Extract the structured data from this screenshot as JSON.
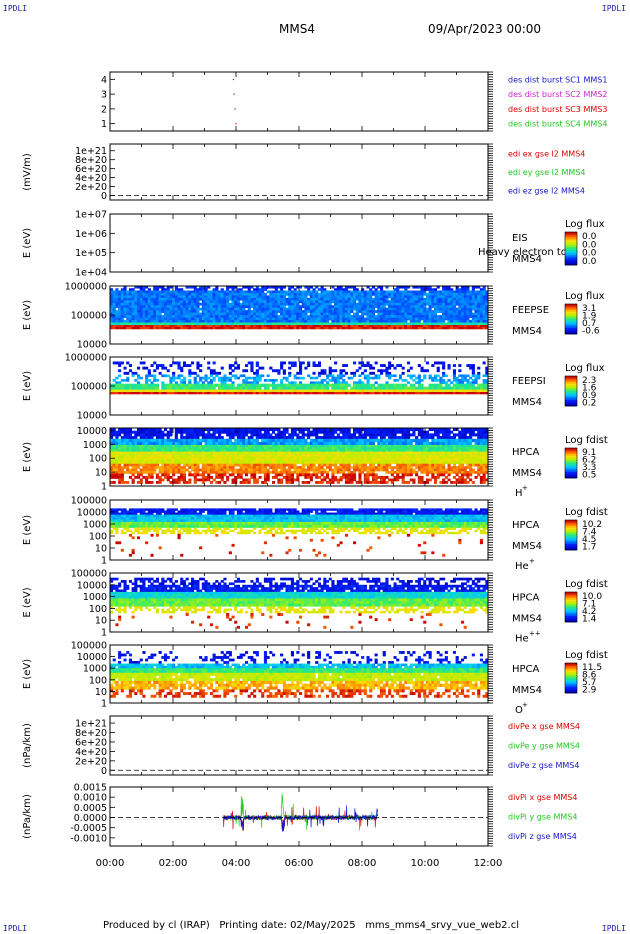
{
  "header": {
    "corner_label": "IPDLI",
    "mission": "MMS4",
    "date": "09/Apr/2023 00:00"
  },
  "footer": {
    "text": "Produced by cl (IRAP)   Printing date: 02/May/2025   mms_mms4_srvy_vue_web2.cl"
  },
  "time_axis": {
    "range_hours": [
      0,
      12
    ],
    "tick_labels": [
      "00:00",
      "02:00",
      "04:00",
      "06:00",
      "08:00",
      "10:00",
      "12:00"
    ]
  },
  "colors": {
    "blue": "#1414c8",
    "magenta": "#d21ed2",
    "red": "#dc0000",
    "green": "#1ec81e"
  },
  "chart_data": [
    {
      "type": "scatter",
      "id": "burst",
      "ylim": [
        0.5,
        4.5
      ],
      "yticks": [
        "1",
        "2",
        "3",
        "4"
      ],
      "series": [
        {
          "name": "des dist burst SC1 MMS1",
          "color": "#1414c8",
          "points": []
        },
        {
          "name": "des dist burst SC2 MMS2",
          "color": "#d21ed2",
          "points": []
        },
        {
          "name": "des dist burst SC3 MMS3",
          "color": "#dc0000",
          "points": [
            [
              3.9,
              4
            ],
            [
              3.92,
              3
            ],
            [
              3.95,
              2
            ],
            [
              3.98,
              1
            ]
          ]
        },
        {
          "name": "des dist burst SC4 MMS4",
          "color": "#1ec81e",
          "points": []
        }
      ]
    },
    {
      "type": "line",
      "id": "edi",
      "ylabel": "(mV/m)",
      "ylim": [
        -1e+20,
        1.15e+21
      ],
      "yticks": [
        "1e+21",
        "8e+20",
        "6e+20",
        "4e+20",
        "2e+20",
        "0"
      ],
      "dashed_zero": true,
      "series": [
        {
          "name": "edi ex gse l2 MMS4",
          "color": "#dc0000"
        },
        {
          "name": "edi ey gse l2 MMS4",
          "color": "#1ec81e"
        },
        {
          "name": "edi ez gse l2 MMS4",
          "color": "#1414c8"
        }
      ]
    },
    {
      "type": "heatmap",
      "id": "eis",
      "ylabel": "E (eV)",
      "log_y": true,
      "ylim": [
        10000,
        10000000
      ],
      "yticks": [
        "1e+07",
        "1e+06",
        "1e+05",
        "1e+04"
      ],
      "instrument": "EIS",
      "spacecraft": "MMS4",
      "species": "",
      "overlay_text": "Heavy electron to",
      "colorbar": {
        "title": "Log flux",
        "ticks": [
          "0.0",
          "0.0",
          "0.0",
          "0.0"
        ]
      },
      "bands": []
    },
    {
      "type": "heatmap",
      "id": "feepse",
      "ylabel": "E (eV)",
      "log_y": true,
      "ylim": [
        10000,
        1000000
      ],
      "yticks": [
        "1000000",
        "100000",
        "10000"
      ],
      "instrument": "FEEPSE",
      "spacecraft": "MMS4",
      "species": "",
      "colorbar": {
        "title": "Log flux",
        "ticks": [
          "3.1",
          "1.9",
          "0.7",
          "-0.6"
        ]
      },
      "bands": [
        {
          "emin": 700000,
          "emax": 1000000,
          "level": 0.15,
          "density": 0.6
        },
        {
          "emin": 55000,
          "emax": 700000,
          "level": 0.25,
          "density": 0.97
        },
        {
          "emin": 45000,
          "emax": 55000,
          "level": 0.45,
          "density": 1.0
        },
        {
          "emin": 33000,
          "emax": 45000,
          "level": 0.97,
          "density": 1.0
        }
      ]
    },
    {
      "type": "heatmap",
      "id": "feepsi",
      "ylabel": "E (eV)",
      "log_y": true,
      "ylim": [
        10000,
        1000000
      ],
      "yticks": [
        "1000000",
        "100000",
        "10000"
      ],
      "instrument": "FEEPSI",
      "spacecraft": "MMS4",
      "species": "",
      "colorbar": {
        "title": "Log flux",
        "ticks": [
          "2.3",
          "1.6",
          "0.9",
          "0.2"
        ]
      },
      "bands": [
        {
          "emin": 250000,
          "emax": 700000,
          "level": 0.1,
          "density": 0.3
        },
        {
          "emin": 120000,
          "emax": 250000,
          "level": 0.3,
          "density": 0.45
        },
        {
          "emin": 75000,
          "emax": 120000,
          "level": 0.5,
          "density": 0.95
        },
        {
          "emin": 62000,
          "emax": 75000,
          "level": 0.72,
          "density": 1.0
        },
        {
          "emin": 53000,
          "emax": 62000,
          "level": 0.97,
          "density": 1.0
        }
      ]
    },
    {
      "type": "heatmap",
      "id": "hpca-h",
      "ylabel": "E (eV)",
      "log_y": true,
      "ylim": [
        1,
        15000
      ],
      "yticks": [
        "10000",
        "1000",
        "100",
        "10",
        "1"
      ],
      "instrument": "HPCA",
      "spacecraft": "MMS4",
      "species": "H",
      "charge": "+",
      "colorbar": {
        "title": "Log fdist",
        "ticks": [
          "9.1",
          "6.2",
          "3.3",
          "0.5"
        ]
      },
      "bands": [
        {
          "emin": 2500,
          "emax": 15000,
          "level": 0.1,
          "density": 0.85
        },
        {
          "emin": 900,
          "emax": 2500,
          "level": 0.3,
          "density": 0.97
        },
        {
          "emin": 300,
          "emax": 900,
          "level": 0.5,
          "density": 1.0
        },
        {
          "emin": 40,
          "emax": 300,
          "level": 0.68,
          "density": 1.0
        },
        {
          "emin": 8,
          "emax": 40,
          "level": 0.85,
          "density": 0.9
        },
        {
          "emin": 1.5,
          "emax": 8,
          "level": 0.96,
          "density": 0.6
        }
      ]
    },
    {
      "type": "heatmap",
      "id": "hpca-he",
      "ylabel": "E (eV)",
      "log_y": true,
      "ylim": [
        1,
        100000
      ],
      "yticks": [
        "100000",
        "10000",
        "1000",
        "100",
        "10",
        "1"
      ],
      "instrument": "HPCA",
      "spacecraft": "MMS4",
      "species": "He",
      "charge": "+",
      "colorbar": {
        "title": "Log fdist",
        "ticks": [
          "10.2",
          "7.4",
          "4.5",
          "1.7"
        ]
      },
      "bands": [
        {
          "emin": 6000,
          "emax": 20000,
          "level": 0.12,
          "density": 0.9
        },
        {
          "emin": 1500,
          "emax": 6000,
          "level": 0.35,
          "density": 1.0
        },
        {
          "emin": 500,
          "emax": 1500,
          "level": 0.55,
          "density": 1.0
        },
        {
          "emin": 150,
          "emax": 500,
          "level": 0.7,
          "density": 0.6
        },
        {
          "emin": 2,
          "emax": 150,
          "level": 0.95,
          "density": 0.04
        }
      ]
    },
    {
      "type": "heatmap",
      "id": "hpca-hepp",
      "ylabel": "E (eV)",
      "log_y": true,
      "ylim": [
        1,
        100000
      ],
      "yticks": [
        "100000",
        "10000",
        "1000",
        "100",
        "10",
        "1"
      ],
      "instrument": "HPCA",
      "spacecraft": "MMS4",
      "species": "He",
      "charge": "++",
      "colorbar": {
        "title": "Log fdist",
        "ticks": [
          "10.0",
          "7.1",
          "4.2",
          "1.4"
        ]
      },
      "bands": [
        {
          "emin": 10000,
          "emax": 40000,
          "level": 0.08,
          "density": 0.5
        },
        {
          "emin": 2500,
          "emax": 10000,
          "level": 0.12,
          "density": 0.85
        },
        {
          "emin": 700,
          "emax": 2500,
          "level": 0.4,
          "density": 1.0
        },
        {
          "emin": 150,
          "emax": 700,
          "level": 0.55,
          "density": 1.0
        },
        {
          "emin": 40,
          "emax": 150,
          "level": 0.7,
          "density": 0.5
        },
        {
          "emin": 2,
          "emax": 40,
          "level": 0.95,
          "density": 0.05
        }
      ]
    },
    {
      "type": "heatmap",
      "id": "hpca-o",
      "ylabel": "E (eV)",
      "log_y": true,
      "ylim": [
        1,
        100000
      ],
      "yticks": [
        "100000",
        "10000",
        "1000",
        "100",
        "10",
        "1"
      ],
      "instrument": "HPCA",
      "spacecraft": "MMS4",
      "species": "O",
      "charge": "+",
      "colorbar": {
        "title": "Log fdist",
        "ticks": [
          "11.5",
          "8.6",
          "5.7",
          "2.9"
        ]
      },
      "bands": [
        {
          "emin": 2500,
          "emax": 30000,
          "level": 0.1,
          "density": 0.25
        },
        {
          "emin": 1000,
          "emax": 2500,
          "level": 0.35,
          "density": 0.9
        },
        {
          "emin": 400,
          "emax": 1000,
          "level": 0.5,
          "density": 1.0
        },
        {
          "emin": 80,
          "emax": 400,
          "level": 0.65,
          "density": 0.95
        },
        {
          "emin": 15,
          "emax": 80,
          "level": 0.8,
          "density": 0.8
        },
        {
          "emin": 3,
          "emax": 15,
          "level": 0.93,
          "density": 0.45
        }
      ]
    },
    {
      "type": "line",
      "id": "divpe",
      "ylabel": "(nPa/km)",
      "ylim": [
        -1e+20,
        1.15e+21
      ],
      "yticks": [
        "1e+21",
        "8e+20",
        "6e+20",
        "4e+20",
        "2e+20",
        "0"
      ],
      "dashed_zero": true,
      "series": [
        {
          "name": "divPe x gse MMS4",
          "color": "#dc0000"
        },
        {
          "name": "divPe y gse MMS4",
          "color": "#1ec81e"
        },
        {
          "name": "divPe z gse MMS4",
          "color": "#1414c8"
        }
      ]
    },
    {
      "type": "line",
      "id": "divpi",
      "ylabel": "(nPa/km)",
      "ylim": [
        -0.0014,
        0.0015
      ],
      "yticks": [
        "0.0015",
        "0.0010",
        "0.0005",
        "0.0000",
        "-0.0005",
        "-0.0010"
      ],
      "dashed_zero": true,
      "data_range_hours": [
        3.6,
        8.5
      ],
      "series": [
        {
          "name": "divPi x gse MMS4",
          "color": "#dc0000"
        },
        {
          "name": "divPi y gse MMS4",
          "color": "#1ec81e"
        },
        {
          "name": "divPi z gse MMS4",
          "color": "#1414c8"
        }
      ]
    }
  ]
}
